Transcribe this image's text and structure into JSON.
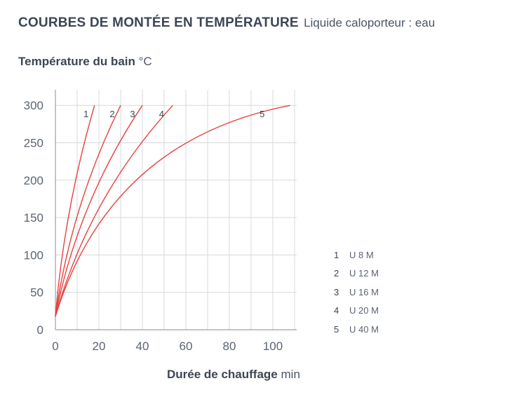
{
  "header": {
    "title": "COURBES DE MONTÉE EN TEMPÉRATURE",
    "subtitle": "Liquide caloporteur : eau"
  },
  "y_axis": {
    "label": "Température du bain",
    "unit": "°C"
  },
  "x_axis": {
    "label": "Durée de chauffage",
    "unit": "min"
  },
  "colors": {
    "curve": "#e8413f",
    "grid": "#d7d9dc",
    "axis": "#9aa0a6",
    "text": "#3c4654"
  },
  "chart_data": {
    "type": "line",
    "title": "COURBES DE MONTÉE EN TEMPÉRATURE",
    "subtitle": "Liquide caloporteur : eau",
    "xlabel": "Durée de chauffage min",
    "ylabel": "Température du bain °C",
    "xlim": [
      0,
      110
    ],
    "ylim": [
      0,
      300
    ],
    "xticks": [
      0,
      20,
      40,
      60,
      80,
      100
    ],
    "yticks": [
      0,
      50,
      100,
      150,
      200,
      250,
      300
    ],
    "grid": true,
    "series": [
      {
        "name": "1",
        "model": "U 8 M",
        "x": [
          0,
          18
        ],
        "y": [
          18,
          300
        ],
        "curvature": 0.05
      },
      {
        "name": "2",
        "model": "U 12 M",
        "x": [
          0,
          30
        ],
        "y": [
          18,
          300
        ],
        "curvature": 0.08
      },
      {
        "name": "3",
        "model": "U 16 M",
        "x": [
          0,
          40
        ],
        "y": [
          18,
          300
        ],
        "curvature": 0.1
      },
      {
        "name": "4",
        "model": "U 20 M",
        "x": [
          0,
          54
        ],
        "y": [
          18,
          300
        ],
        "curvature": 0.12
      },
      {
        "name": "5",
        "model": "U 40 M",
        "x": [
          0,
          108
        ],
        "y": [
          18,
          300
        ],
        "curvature": 0.3
      }
    ],
    "legend": [
      {
        "num": "1",
        "text": "U 8 M"
      },
      {
        "num": "2",
        "text": "U 12 M"
      },
      {
        "num": "3",
        "text": "U 16 M"
      },
      {
        "num": "4",
        "text": "U 20 M"
      },
      {
        "num": "5",
        "text": "U 40 M"
      }
    ]
  }
}
